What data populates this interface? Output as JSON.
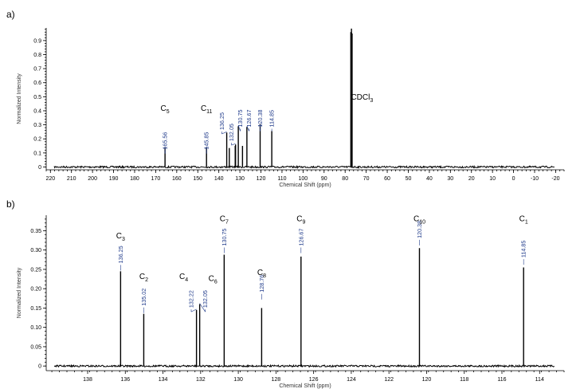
{
  "chart_data": [
    {
      "type": "line",
      "panel": "a)",
      "xlabel": "Chemical Shift (ppm)",
      "ylabel": "Normalized Intensity",
      "xlim": [
        222,
        -24
      ],
      "ylim": [
        -0.02,
        0.99
      ],
      "x_reversed": true,
      "xticks": [
        220,
        210,
        200,
        190,
        180,
        170,
        160,
        150,
        140,
        130,
        120,
        110,
        100,
        90,
        80,
        70,
        60,
        50,
        40,
        30,
        20,
        10,
        0,
        -10,
        -20
      ],
      "yticks": [
        "0",
        "0.1",
        "0.2",
        "0.3",
        "0.4",
        "0.5",
        "0.6",
        "0.7",
        "0.8",
        "0.9"
      ],
      "ytick_values": [
        0,
        0.1,
        0.2,
        0.3,
        0.4,
        0.5,
        0.6,
        0.7,
        0.8,
        0.9
      ],
      "peaks": [
        {
          "shift": 165.56,
          "intensity": 0.14
        },
        {
          "shift": 145.85,
          "intensity": 0.14
        },
        {
          "shift": 136.25,
          "intensity": 0.245
        },
        {
          "shift": 135.02,
          "intensity": 0.135
        },
        {
          "shift": 132.22,
          "intensity": 0.15
        },
        {
          "shift": 132.05,
          "intensity": 0.16
        },
        {
          "shift": 130.75,
          "intensity": 0.29
        },
        {
          "shift": 128.76,
          "intensity": 0.15
        },
        {
          "shift": 126.67,
          "intensity": 0.285
        },
        {
          "shift": 120.38,
          "intensity": 0.305
        },
        {
          "shift": 114.85,
          "intensity": 0.255
        },
        {
          "shift": 77.3,
          "intensity": 0.96
        },
        {
          "shift": 77.0,
          "intensity": 0.985
        },
        {
          "shift": 76.7,
          "intensity": 0.95
        }
      ],
      "shift_labels": [
        {
          "text": "165.56",
          "shift": 165.56,
          "label_shift": 165.56,
          "top": 0.26
        },
        {
          "text": "145.85",
          "shift": 145.85,
          "label_shift": 145.85,
          "top": 0.26
        },
        {
          "text": "136.25",
          "shift": 136.25,
          "label_shift": 138.6,
          "top": 0.4
        },
        {
          "text": "132.05",
          "shift": 132.05,
          "label_shift": 134.0,
          "top": 0.32
        },
        {
          "text": "130.75",
          "shift": 130.75,
          "label_shift": 129.8,
          "top": 0.42
        },
        {
          "text": "126.67",
          "shift": 126.67,
          "label_shift": 125.6,
          "top": 0.42
        },
        {
          "text": "120.38",
          "shift": 120.38,
          "label_shift": 120.38,
          "top": 0.42
        },
        {
          "text": "114.85",
          "shift": 114.85,
          "label_shift": 114.85,
          "top": 0.42
        }
      ],
      "assignments": [
        {
          "main": "C",
          "sub": "5",
          "shift": 165.56,
          "y": 0.4
        },
        {
          "main": "C",
          "sub": "11",
          "shift": 145.85,
          "y": 0.4
        },
        {
          "main": "CDCl",
          "sub": "3",
          "shift": 72.0,
          "y": 0.48
        }
      ]
    },
    {
      "type": "line",
      "panel": "b)",
      "xlabel": "Chemical Shift (ppm)",
      "ylabel": "Normalized Intensity",
      "xlim": [
        140.2,
        112.7
      ],
      "ylim": [
        -0.012,
        0.39
      ],
      "x_reversed": true,
      "xticks": [
        138,
        136,
        134,
        132,
        130,
        128,
        126,
        124,
        122,
        120,
        118,
        116,
        114
      ],
      "yticks": [
        "0",
        "0.05",
        "0.10",
        "0.15",
        "0.20",
        "0.25",
        "0.30",
        "0.35"
      ],
      "ytick_values": [
        0,
        0.05,
        0.1,
        0.15,
        0.2,
        0.25,
        0.3,
        0.35
      ],
      "peaks": [
        {
          "shift": 136.25,
          "intensity": 0.245
        },
        {
          "shift": 135.02,
          "intensity": 0.135
        },
        {
          "shift": 132.22,
          "intensity": 0.145
        },
        {
          "shift": 132.05,
          "intensity": 0.16
        },
        {
          "shift": 130.75,
          "intensity": 0.288
        },
        {
          "shift": 128.76,
          "intensity": 0.15
        },
        {
          "shift": 126.67,
          "intensity": 0.283
        },
        {
          "shift": 120.38,
          "intensity": 0.305
        },
        {
          "shift": 114.85,
          "intensity": 0.255
        }
      ],
      "shift_labels": [
        {
          "text": "136.25",
          "shift": 136.25,
          "label_shift": 136.25,
          "top": 0.315
        },
        {
          "text": "135.02",
          "shift": 135.02,
          "label_shift": 135.02,
          "top": 0.205
        },
        {
          "text": "132.22",
          "shift": 132.22,
          "label_shift": 132.5,
          "top": 0.2
        },
        {
          "text": "132.05",
          "shift": 132.05,
          "label_shift": 131.75,
          "top": 0.2
        },
        {
          "text": "130.75",
          "shift": 130.75,
          "label_shift": 130.75,
          "top": 0.36
        },
        {
          "text": "128.76",
          "shift": 128.76,
          "label_shift": 128.76,
          "top": 0.24
        },
        {
          "text": "126.67",
          "shift": 126.67,
          "label_shift": 126.67,
          "top": 0.36
        },
        {
          "text": "120.38",
          "shift": 120.38,
          "label_shift": 120.38,
          "top": 0.38
        },
        {
          "text": "114.85",
          "shift": 114.85,
          "label_shift": 114.85,
          "top": 0.33
        }
      ],
      "assignments": [
        {
          "main": "C",
          "sub": "3",
          "shift": 136.25,
          "y": 0.33
        },
        {
          "main": "C",
          "sub": "2",
          "shift": 135.02,
          "y": 0.225
        },
        {
          "main": "C",
          "sub": "4",
          "shift": 132.9,
          "y": 0.225
        },
        {
          "main": "C",
          "sub": "6",
          "shift": 131.35,
          "y": 0.22
        },
        {
          "main": "C",
          "sub": "7",
          "shift": 130.75,
          "y": 0.375
        },
        {
          "main": "C",
          "sub": "8",
          "shift": 128.76,
          "y": 0.235
        },
        {
          "main": "C",
          "sub": "9",
          "shift": 126.67,
          "y": 0.375
        },
        {
          "main": "C",
          "sub": "10",
          "shift": 120.38,
          "y": 0.375
        },
        {
          "main": "C",
          "sub": "1",
          "shift": 114.85,
          "y": 0.375
        }
      ]
    }
  ]
}
